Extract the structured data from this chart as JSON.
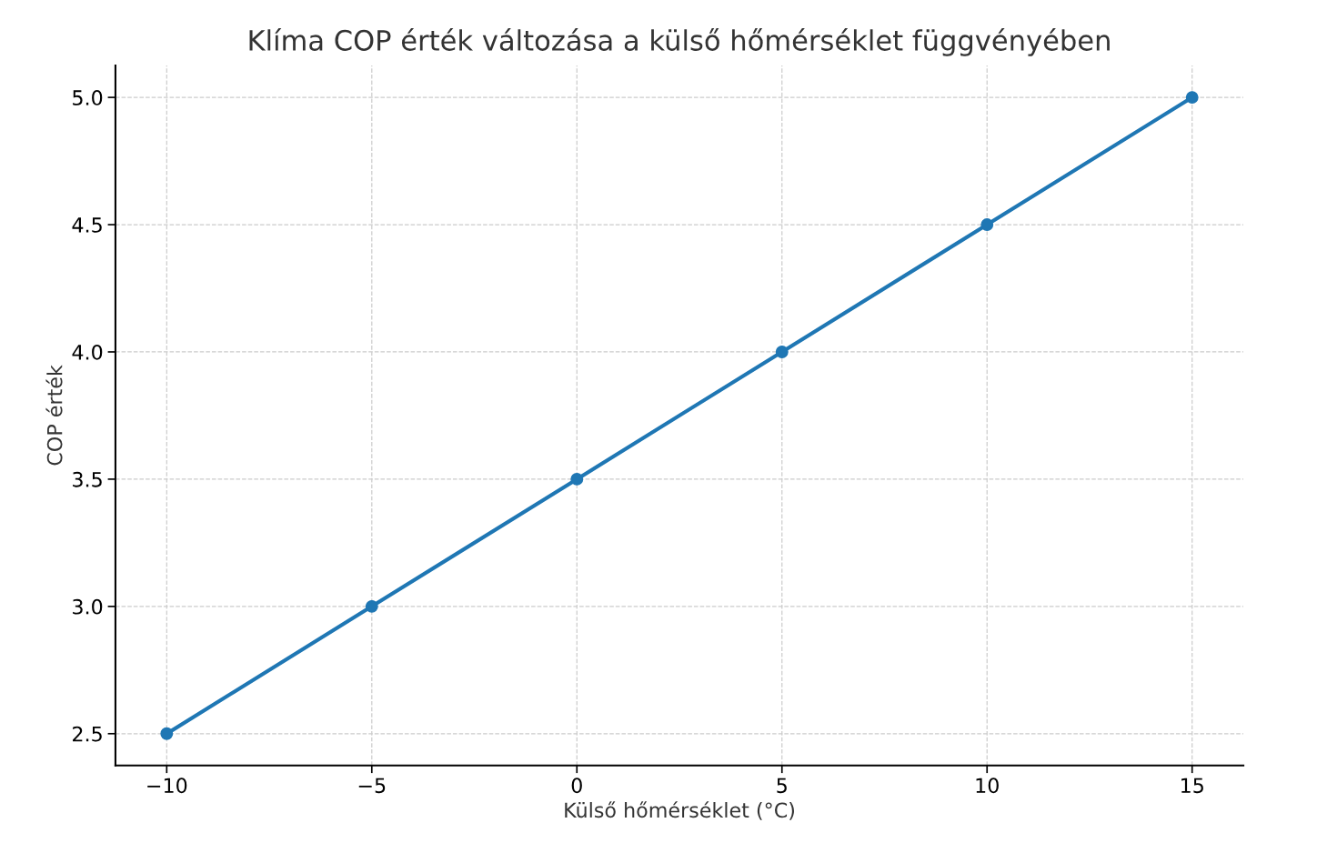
{
  "chart_data": {
    "type": "line",
    "title": "Klíma COP érték változása a külső hőmérséklet függvényében",
    "xlabel": "Külső hőmérséklet (°C)",
    "ylabel": "COP érték",
    "x": [
      -10,
      -5,
      0,
      5,
      10,
      15
    ],
    "series": [
      {
        "color": "#1f77b4",
        "values": [
          2.5,
          3.0,
          3.5,
          4.0,
          4.5,
          5.0
        ]
      }
    ],
    "xlim": [
      -11.25,
      16.25
    ],
    "xticks": [
      {
        "value": -10,
        "label": "−10"
      },
      {
        "value": -5,
        "label": "−5"
      },
      0,
      5,
      10,
      15
    ],
    "ylim": [
      2.375,
      5.125
    ],
    "yticks": [
      {
        "value": 2.5,
        "label": "2.5"
      },
      {
        "value": 3.0,
        "label": "3.0"
      },
      {
        "value": 3.5,
        "label": "3.5"
      },
      {
        "value": 4.0,
        "label": "4.0"
      },
      {
        "value": 4.5,
        "label": "4.5"
      },
      {
        "value": 5.0,
        "label": "5.0"
      }
    ],
    "grid": true,
    "marker": "circle",
    "line_style": "solid"
  }
}
